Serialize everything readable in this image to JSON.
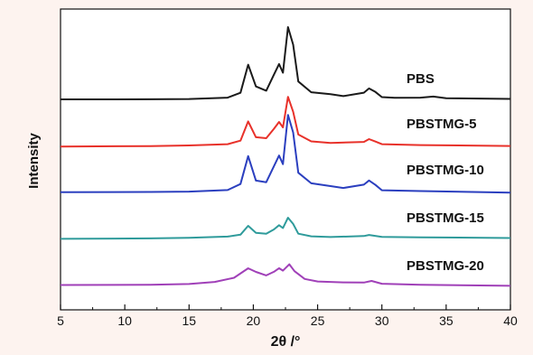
{
  "chart_data": {
    "type": "line",
    "title": "",
    "xlabel": "2θ /°",
    "ylabel": "Intensity",
    "xlim": [
      5,
      40
    ],
    "xticks": [
      5,
      10,
      15,
      20,
      25,
      30,
      35,
      40
    ],
    "yticks_shown": false,
    "grid": false,
    "legend": "none",
    "series": [
      {
        "name": "PBS",
        "color": "#1a1a1a",
        "points": [
          [
            5,
            0
          ],
          [
            12,
            0.3
          ],
          [
            15,
            0.8
          ],
          [
            18,
            2.5
          ],
          [
            19,
            8
          ],
          [
            19.6,
            40
          ],
          [
            20.2,
            15
          ],
          [
            21,
            10
          ],
          [
            21.6,
            28
          ],
          [
            22,
            40
          ],
          [
            22.3,
            30
          ],
          [
            22.7,
            82
          ],
          [
            23.1,
            62
          ],
          [
            23.5,
            20
          ],
          [
            24.5,
            8
          ],
          [
            26,
            6
          ],
          [
            27,
            4
          ],
          [
            28.6,
            8
          ],
          [
            29,
            13
          ],
          [
            29.5,
            9
          ],
          [
            30,
            3
          ],
          [
            31,
            2
          ],
          [
            33,
            2
          ],
          [
            34,
            3
          ],
          [
            35,
            1
          ],
          [
            40,
            0
          ]
        ]
      },
      {
        "name": "PBSTMG-5",
        "color": "#e8312a",
        "points": [
          [
            5,
            0
          ],
          [
            12,
            0.3
          ],
          [
            15,
            0.8
          ],
          [
            18,
            2
          ],
          [
            19,
            6
          ],
          [
            19.6,
            28
          ],
          [
            20.2,
            10
          ],
          [
            21,
            9
          ],
          [
            21.6,
            20
          ],
          [
            22,
            28
          ],
          [
            22.3,
            22
          ],
          [
            22.7,
            57
          ],
          [
            23.1,
            40
          ],
          [
            23.5,
            14
          ],
          [
            24.5,
            6
          ],
          [
            26,
            4
          ],
          [
            28.6,
            5
          ],
          [
            29,
            8
          ],
          [
            29.5,
            5
          ],
          [
            30,
            2
          ],
          [
            33,
            1
          ],
          [
            40,
            0
          ]
        ]
      },
      {
        "name": "PBSTMG-10",
        "color": "#2b3fbf",
        "points": [
          [
            5,
            0
          ],
          [
            12,
            0.4
          ],
          [
            15,
            1
          ],
          [
            18,
            3
          ],
          [
            19,
            10
          ],
          [
            19.6,
            42
          ],
          [
            20.2,
            14
          ],
          [
            21,
            12
          ],
          [
            21.6,
            30
          ],
          [
            22,
            42
          ],
          [
            22.3,
            32
          ],
          [
            22.7,
            88
          ],
          [
            23.1,
            68
          ],
          [
            23.5,
            22
          ],
          [
            24.5,
            10
          ],
          [
            26,
            7
          ],
          [
            27,
            5
          ],
          [
            28.6,
            9
          ],
          [
            29,
            14
          ],
          [
            29.5,
            9
          ],
          [
            30,
            3
          ],
          [
            33,
            2
          ],
          [
            40,
            0
          ]
        ]
      },
      {
        "name": "PBSTMG-15",
        "color": "#2f9b9b",
        "points": [
          [
            5,
            0
          ],
          [
            12,
            0.3
          ],
          [
            15,
            0.8
          ],
          [
            18,
            2
          ],
          [
            19,
            4
          ],
          [
            19.6,
            14
          ],
          [
            20.2,
            6
          ],
          [
            21,
            5
          ],
          [
            21.6,
            10
          ],
          [
            22,
            15
          ],
          [
            22.3,
            12
          ],
          [
            22.7,
            24
          ],
          [
            23.1,
            17
          ],
          [
            23.5,
            6
          ],
          [
            24.5,
            3
          ],
          [
            26,
            2
          ],
          [
            28.6,
            3
          ],
          [
            29,
            4
          ],
          [
            30,
            1.5
          ],
          [
            33,
            1
          ],
          [
            40,
            0
          ]
        ]
      },
      {
        "name": "PBSTMG-20",
        "color": "#a040b8",
        "points": [
          [
            5,
            0
          ],
          [
            12,
            0.5
          ],
          [
            15,
            1.5
          ],
          [
            17,
            4
          ],
          [
            18.5,
            9
          ],
          [
            19.6,
            20
          ],
          [
            20.2,
            16
          ],
          [
            21,
            12
          ],
          [
            21.6,
            16
          ],
          [
            22,
            20
          ],
          [
            22.3,
            17
          ],
          [
            22.8,
            24
          ],
          [
            23.2,
            16
          ],
          [
            24,
            7
          ],
          [
            25,
            4
          ],
          [
            27,
            3
          ],
          [
            28.6,
            3
          ],
          [
            29.2,
            5
          ],
          [
            30,
            2
          ],
          [
            33,
            1
          ],
          [
            40,
            0
          ]
        ]
      }
    ]
  }
}
